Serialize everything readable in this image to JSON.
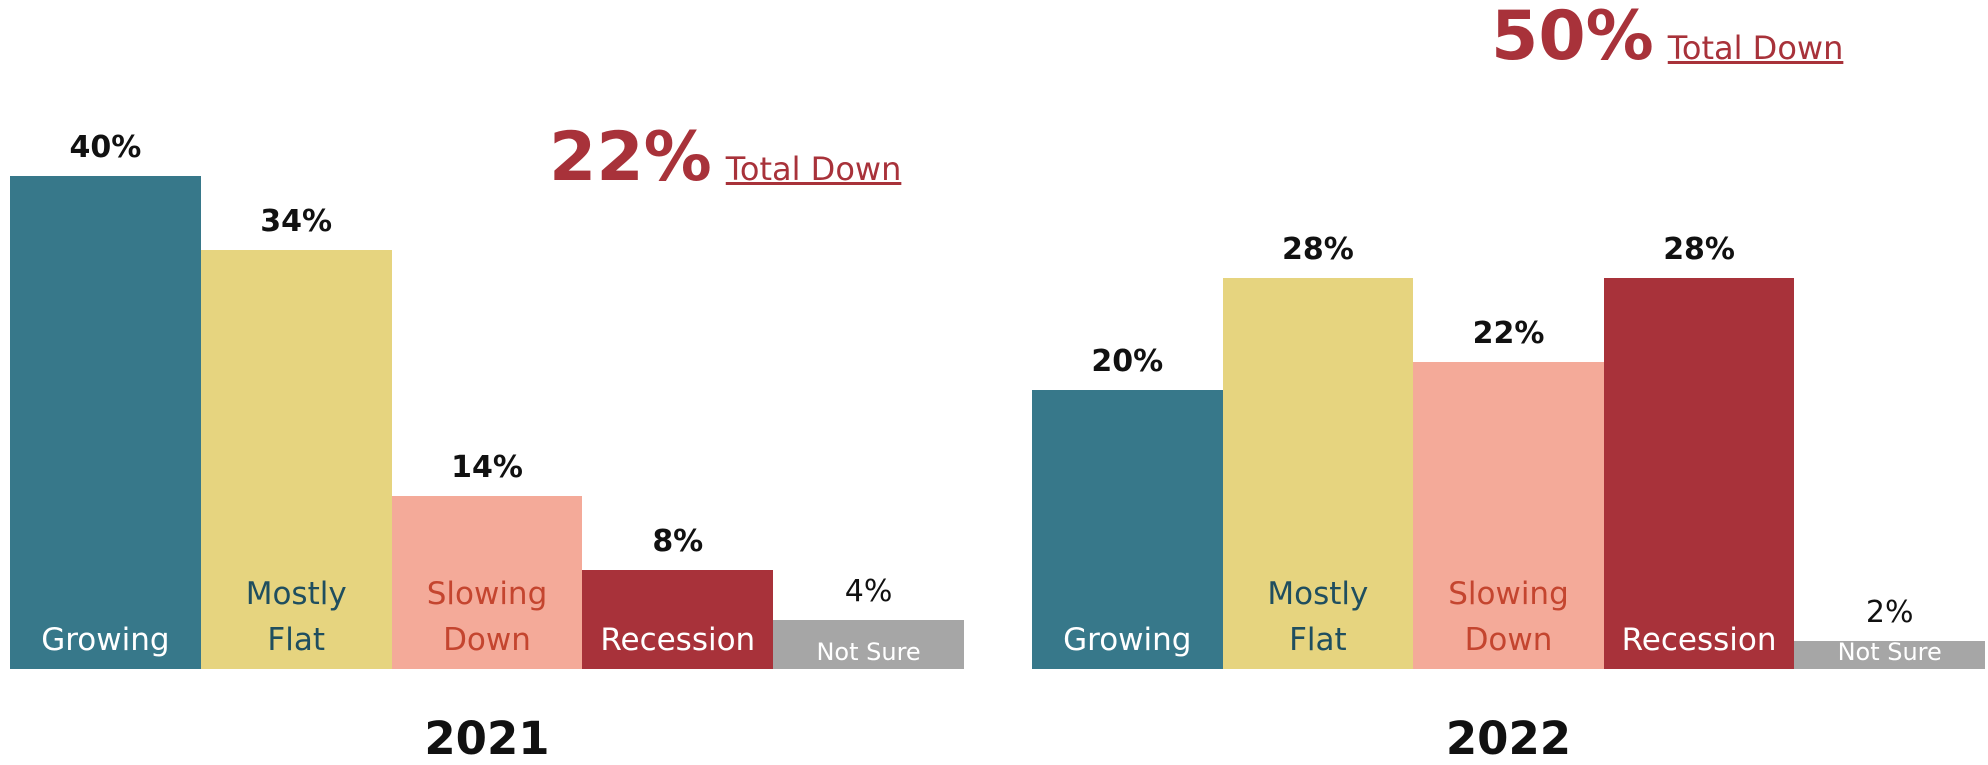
{
  "chart_data": [
    {
      "type": "bar",
      "title": "2021",
      "categories": [
        "Growing",
        "Mostly\nFlat",
        "Slowing\nDown",
        "Recession",
        "Not Sure"
      ],
      "values": [
        40,
        34,
        14,
        8,
        4
      ],
      "value_labels": [
        "40%",
        "34%",
        "14%",
        "8%",
        "4%"
      ],
      "colors": [
        "#37788a",
        "#e6d47f",
        "#f4aa99",
        "#a8323a",
        "#a6a6a6"
      ],
      "label_colors": [
        "#ffffff",
        "#1f4e5f",
        "#c4452f",
        "#ffffff",
        "#ffffff"
      ],
      "ylim": [
        0,
        45
      ],
      "annotation": "22%",
      "annotation_text": "Total Down"
    },
    {
      "type": "bar",
      "title": "2022",
      "categories": [
        "Growing",
        "Mostly\nFlat",
        "Slowing\nDown",
        "Recession",
        "Not Sure"
      ],
      "values": [
        20,
        28,
        22,
        28,
        2
      ],
      "value_labels": [
        "20%",
        "28%",
        "22%",
        "28%",
        "2%"
      ],
      "colors": [
        "#37788a",
        "#e6d47f",
        "#f4aa99",
        "#a8323a",
        "#a6a6a6"
      ],
      "label_colors": [
        "#ffffff",
        "#1f4e5f",
        "#c4452f",
        "#ffffff",
        "#ffffff"
      ],
      "ylim": [
        0,
        45
      ],
      "annotation": "50%",
      "annotation_text": "Total Down"
    }
  ]
}
